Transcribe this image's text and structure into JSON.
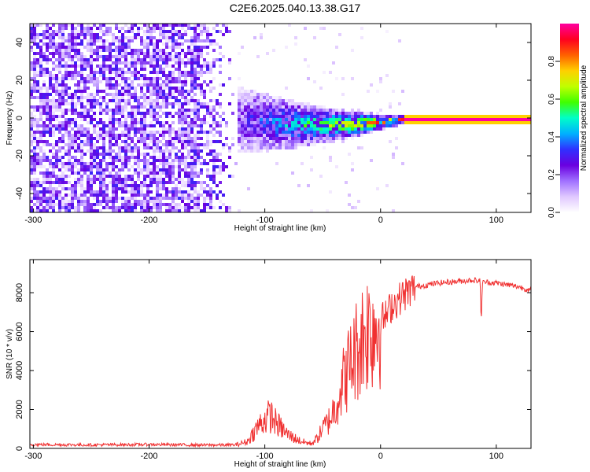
{
  "title": "C2E6.2025.040.13.38.G17",
  "chart_data": [
    {
      "type": "heatmap",
      "xlabel": "Height of straight line (km)",
      "ylabel": "Frequency (Hz)",
      "xlim": [
        -303,
        130
      ],
      "ylim": [
        -50,
        50
      ],
      "xticks": [
        -300,
        -200,
        -100,
        0,
        100
      ],
      "yticks": [
        -40,
        -20,
        0,
        20,
        40
      ],
      "colorbar": {
        "label": "Normalized spectral amplitude",
        "range": [
          0.0,
          1.0
        ],
        "ticks": [
          0.0,
          0.2,
          0.4,
          0.6,
          0.8
        ],
        "colors": [
          "#ffffff",
          "#e0c8ff",
          "#a070ff",
          "#6a00e0",
          "#3030ff",
          "#00b0ff",
          "#00ffc8",
          "#40ff00",
          "#c0ff00",
          "#ffd000",
          "#ff6000",
          "#ff0020",
          "#ff00a0"
        ]
      },
      "features": {
        "noise_region_km": [
          -303,
          -125
        ],
        "noise_level": 0.22,
        "tone_region_km": [
          -125,
          20
        ],
        "tone_frequency_hz": 0,
        "tone_spread_hz_at_start": 16,
        "steady_line_km": [
          20,
          130
        ],
        "steady_line_level": 1.0
      }
    },
    {
      "type": "line",
      "xlabel": "Height of straight line (km)",
      "ylabel": "SNR (10 * v/v)",
      "xlim": [
        -303,
        130
      ],
      "ylim": [
        0,
        9700
      ],
      "xticks": [
        -300,
        -200,
        -100,
        0,
        100
      ],
      "yticks": [
        0,
        2000,
        4000,
        6000,
        8000
      ],
      "line_color": "#f03030",
      "series": [
        {
          "x": [
            -303,
            -250,
            -200,
            -150,
            -125,
            -115,
            -110,
            -105,
            -100,
            -95,
            -90,
            -85,
            -80,
            -75,
            -70,
            -65,
            -60,
            -55,
            -50,
            -45,
            -40,
            -35,
            -30,
            -25,
            -20,
            -15,
            -10,
            -5,
            0,
            5,
            10,
            15,
            20,
            25,
            30,
            40,
            50,
            60,
            70,
            80,
            86,
            87,
            88,
            90,
            100,
            110,
            120,
            130
          ],
          "y": [
            200,
            180,
            200,
            170,
            180,
            350,
            800,
            1200,
            1500,
            1700,
            1300,
            1000,
            700,
            550,
            400,
            300,
            250,
            500,
            1000,
            1400,
            2000,
            3000,
            3800,
            4500,
            5200,
            5800,
            6200,
            6300,
            6600,
            6800,
            7400,
            7600,
            7900,
            8100,
            8300,
            8400,
            8500,
            8550,
            8600,
            8650,
            8600,
            6500,
            8500,
            8550,
            8500,
            8400,
            8300,
            8100
          ]
        }
      ]
    }
  ]
}
